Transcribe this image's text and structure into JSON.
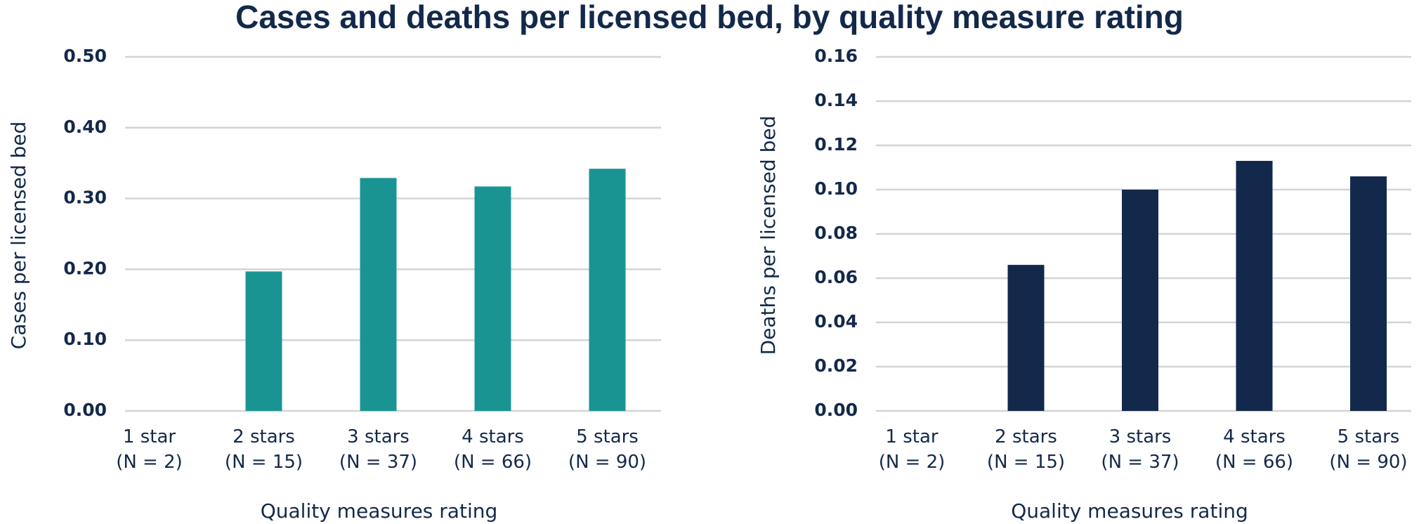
{
  "title": "Cases and deaths per licensed bed, by quality measure rating",
  "chart_data": [
    {
      "type": "bar",
      "xlabel": "Quality measures rating",
      "ylabel": "Cases per licensed bed",
      "categories": [
        "1 star\n(N = 2)",
        "2 stars\n(N = 15)",
        "3 stars\n(N = 37)",
        "4 stars\n(N = 66)",
        "5 stars\n(N = 90)"
      ],
      "values": [
        0,
        0.197,
        0.329,
        0.317,
        0.342
      ],
      "color": "#1a9493",
      "ylim": [
        0,
        0.5
      ],
      "yticks": [
        {
          "value": 0,
          "label": "0.00"
        },
        {
          "value": 0.1,
          "label": "0.10"
        },
        {
          "value": 0.2,
          "label": "0.20"
        },
        {
          "value": 0.3,
          "label": "0.30"
        },
        {
          "value": 0.4,
          "label": "0.40"
        },
        {
          "value": 0.5,
          "label": "0.50"
        }
      ],
      "grid": true
    },
    {
      "type": "bar",
      "xlabel": "Quality measures rating",
      "ylabel": "Deaths per licensed bed",
      "categories": [
        "1 star\n(N = 2)",
        "2 stars\n(N = 15)",
        "3 stars\n(N = 37)",
        "4 stars\n(N = 66)",
        "5 stars\n(N = 90)"
      ],
      "values": [
        0,
        0.066,
        0.1,
        0.113,
        0.106
      ],
      "color": "#13294b",
      "ylim": [
        0,
        0.16
      ],
      "yticks": [
        {
          "value": 0,
          "label": "0.00"
        },
        {
          "value": 0.02,
          "label": "0.02"
        },
        {
          "value": 0.04,
          "label": "0.04"
        },
        {
          "value": 0.06,
          "label": "0.06"
        },
        {
          "value": 0.08,
          "label": "0.08"
        },
        {
          "value": 0.1,
          "label": "0.10"
        },
        {
          "value": 0.12,
          "label": "0.12"
        },
        {
          "value": 0.14,
          "label": "0.14"
        },
        {
          "value": 0.16,
          "label": "0.16"
        }
      ],
      "grid": true
    }
  ]
}
